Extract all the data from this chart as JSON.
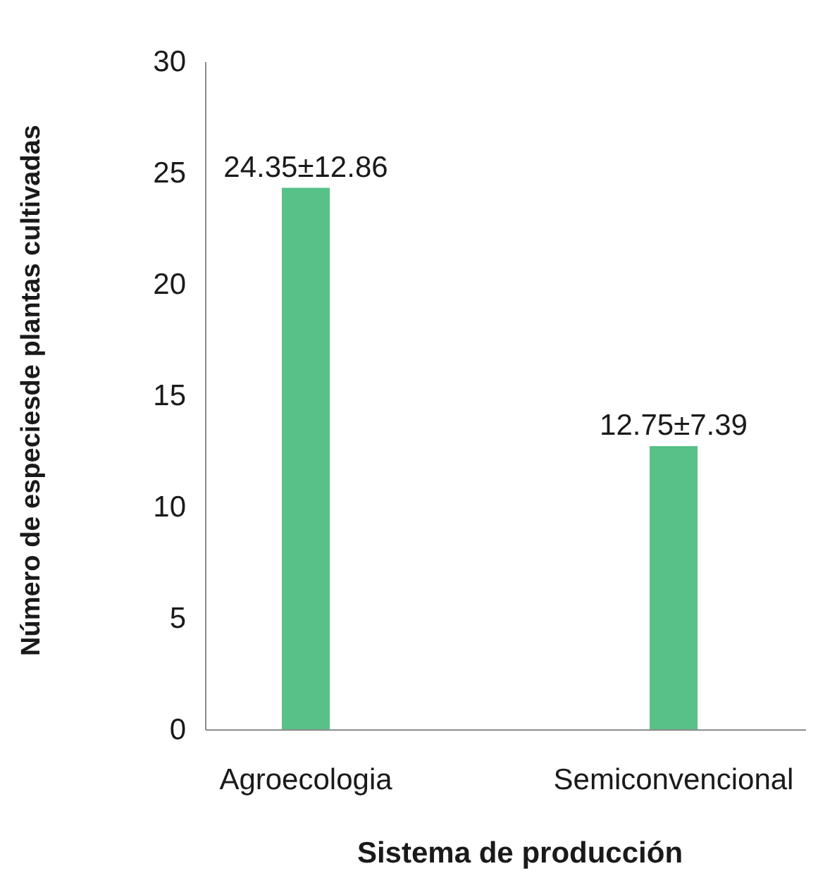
{
  "chart_data": {
    "type": "bar",
    "xlabel": "Sistema de producción",
    "ylabel": "Número de especiesde plantas cultivadas",
    "categories": [
      "Agroecologia",
      "Semiconvencional"
    ],
    "values": [
      24.35,
      12.75
    ],
    "value_labels": [
      "24.35±12.86",
      "12.75±7.39"
    ],
    "color": "#57c187",
    "ylim": [
      0,
      30
    ],
    "yticks": [
      0,
      5,
      10,
      15,
      20,
      25,
      30
    ],
    "grid": false
  }
}
